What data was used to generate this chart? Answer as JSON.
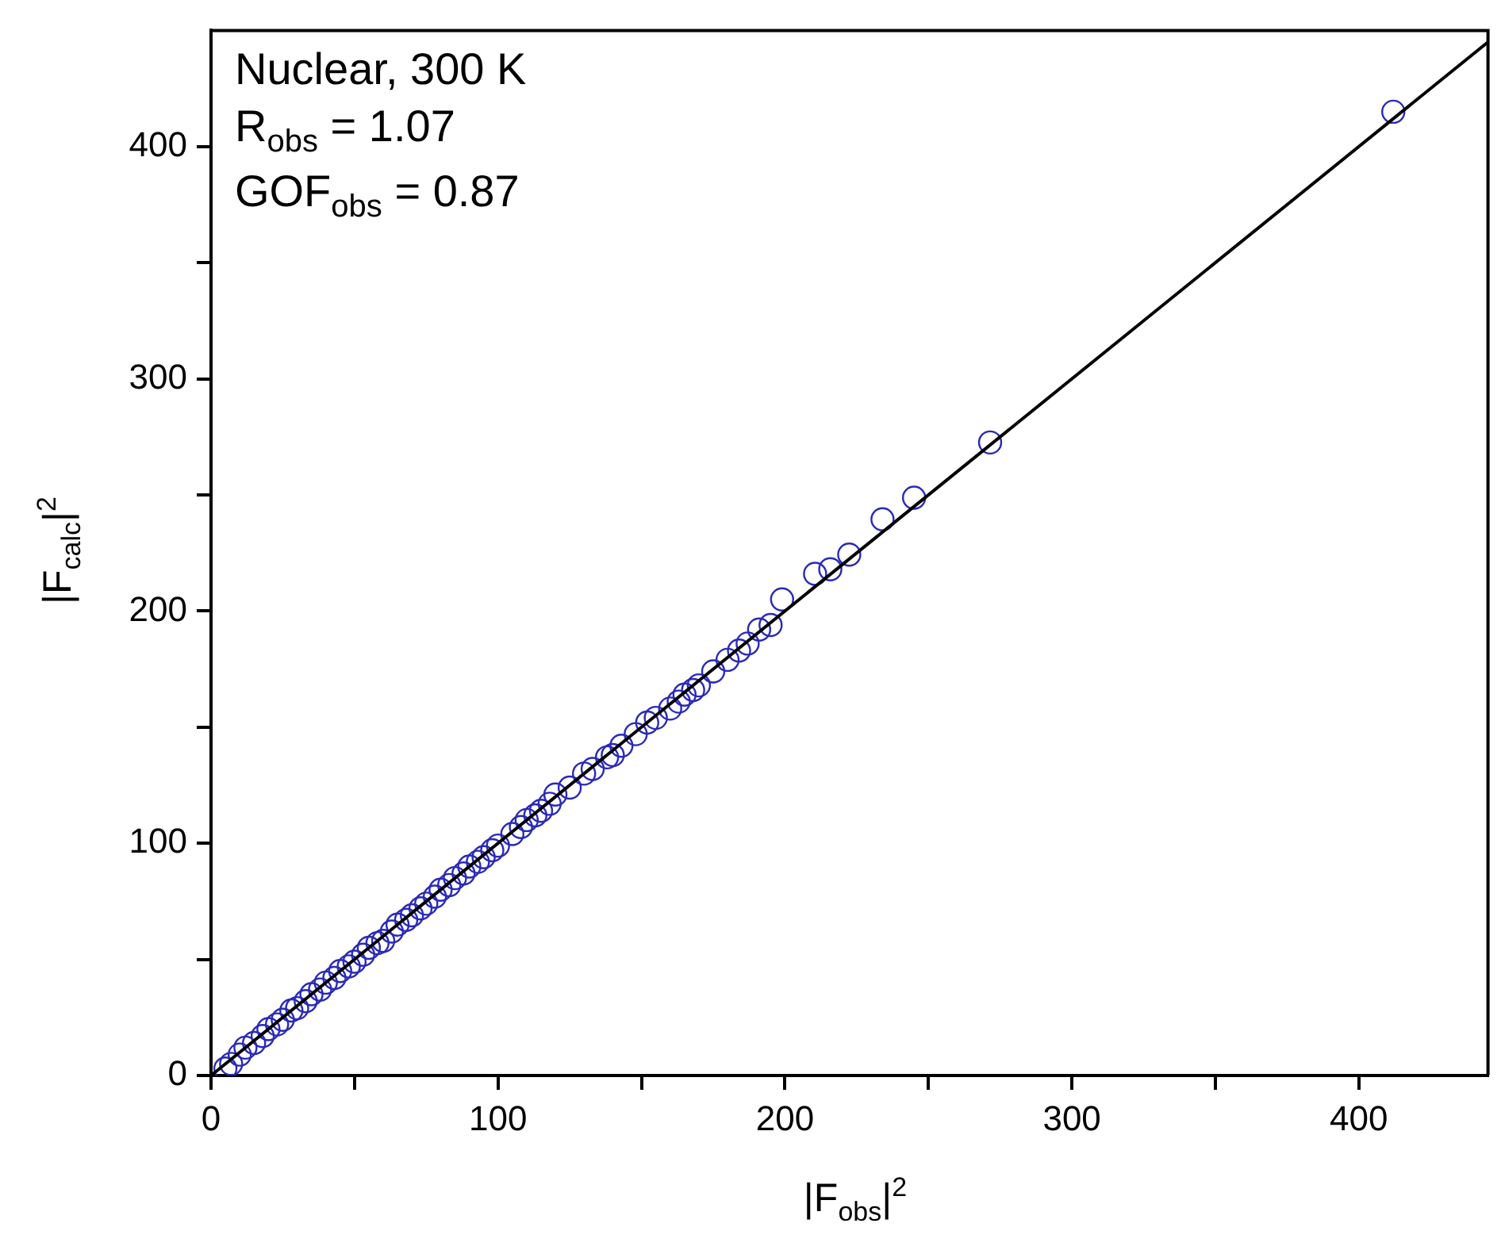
{
  "chart_data": {
    "type": "scatter",
    "xlabel": "|F$_{obs}$|$^{2}$",
    "ylabel": "|F$_{calc}$|$^{2}$",
    "annotations": [
      "Nuclear, 300 K",
      "R$_{obs}$ = 1.07",
      "GOF$_{obs}$ = 0.87"
    ],
    "xlim": [
      0,
      445
    ],
    "ylim": [
      0,
      450
    ],
    "xticks": [
      0,
      {
        "value": 50,
        "label": null
      },
      100,
      {
        "value": 150,
        "label": null
      },
      200,
      {
        "value": 250,
        "label": null
      },
      300,
      {
        "value": 350,
        "label": null
      },
      400
    ],
    "yticks": [
      0,
      {
        "value": 50,
        "label": null
      },
      100,
      {
        "value": 150,
        "label": null
      },
      200,
      {
        "value": 250,
        "label": null
      },
      300,
      {
        "value": 350,
        "label": null
      },
      400
    ],
    "grid": false,
    "legend": false,
    "marker": "circle",
    "series": [
      {
        "color": "#2a2ab8",
        "x": [
          5,
          7,
          10,
          12,
          15,
          18,
          20,
          23,
          25,
          28,
          30,
          33,
          35,
          38,
          40,
          43,
          45,
          48,
          50,
          53,
          55,
          58,
          60,
          63,
          65,
          68,
          70,
          73,
          75,
          78,
          80,
          83,
          85,
          88,
          90,
          93,
          95,
          98,
          100,
          105,
          108,
          110,
          113,
          115,
          118,
          120,
          125,
          130,
          133,
          138,
          140,
          143,
          148,
          152,
          155,
          160,
          163,
          165,
          168,
          170,
          175,
          180,
          184,
          187,
          191,
          195,
          199,
          210.5,
          215.8,
          222.4,
          234,
          245,
          271.5,
          412
        ],
        "values": [
          3,
          5,
          9,
          12,
          14,
          17,
          20,
          22,
          24,
          28,
          29,
          32,
          35,
          37,
          40,
          42,
          45,
          47,
          49,
          52,
          55,
          57,
          58,
          62,
          65,
          67,
          69,
          72,
          74,
          77,
          80,
          82,
          85,
          87,
          90,
          92,
          94,
          97,
          99,
          104,
          107,
          110,
          112,
          114,
          117,
          121,
          124,
          130,
          132,
          137,
          138,
          142,
          147,
          152,
          154,
          158,
          161,
          164,
          166,
          168,
          174,
          179,
          183,
          186,
          192,
          194,
          205,
          216,
          218,
          224.3,
          239.5,
          248.8,
          272.6,
          415
        ]
      },
      {
        "type": "line",
        "color": "#000000",
        "marker": "none",
        "x": [
          0,
          445
        ],
        "values": [
          0,
          445
        ]
      }
    ]
  }
}
